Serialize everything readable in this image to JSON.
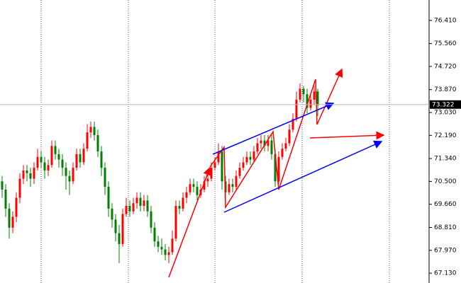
{
  "chart_data": {
    "type": "candlestick",
    "ylim": [
      66.77,
      77.16
    ],
    "yticks": [
      {
        "value": 67.13,
        "label": "67.130"
      },
      {
        "value": 67.97,
        "label": "67.970"
      },
      {
        "value": 68.81,
        "label": "68.810"
      },
      {
        "value": 69.66,
        "label": "69.660"
      },
      {
        "value": 70.5,
        "label": "70.500"
      },
      {
        "value": 71.34,
        "label": "71.340"
      },
      {
        "value": 72.19,
        "label": "72.190"
      },
      {
        "value": 73.03,
        "label": "73.030"
      },
      {
        "value": 73.87,
        "label": "73.870"
      },
      {
        "value": 74.72,
        "label": "74.720"
      },
      {
        "value": 75.56,
        "label": "75.560"
      },
      {
        "value": 76.41,
        "label": "76.410"
      }
    ],
    "current_price": 73.322,
    "up_color": "#ff0000",
    "down_color": "#008000",
    "open": [
      70.5,
      70.2,
      69.5,
      68.8,
      69.2,
      69.9,
      70.6,
      70.9,
      70.8,
      70.6,
      71.0,
      71.4,
      71.2,
      70.9,
      71.1,
      71.8,
      71.5,
      71.3,
      71.0,
      70.7,
      70.5,
      71.0,
      71.5,
      71.2,
      71.7,
      72.3,
      72.5,
      72.2,
      71.6,
      71.0,
      70.3,
      69.5,
      69.1,
      68.6,
      68.2,
      69.3,
      69.6,
      69.4,
      69.7,
      69.9,
      69.6,
      69.8,
      69.4,
      68.8,
      68.3,
      68.1,
      68.0,
      67.8,
      67.9,
      68.4,
      69.6,
      69.5,
      69.9,
      70.1,
      70.4,
      70.3,
      70.0,
      70.2,
      70.5,
      70.6,
      71.0,
      71.2,
      71.6,
      70.5,
      70.1,
      70.4,
      70.3,
      70.7,
      71.0,
      71.2,
      71.4,
      71.3,
      71.6,
      71.9,
      72.0,
      71.8,
      72.0,
      71.5,
      70.5,
      71.4,
      71.7,
      71.9,
      72.4,
      72.8,
      73.5,
      73.9,
      73.7,
      73.2,
      73.5,
      73.8
    ],
    "high": [
      70.7,
      70.4,
      69.7,
      69.4,
      70.1,
      70.8,
      71.1,
      71.1,
      71.0,
      71.2,
      71.7,
      71.6,
      71.4,
      71.3,
      72.0,
      72.0,
      71.7,
      71.5,
      71.2,
      70.9,
      71.2,
      71.7,
      71.7,
      71.9,
      72.6,
      72.7,
      72.7,
      72.4,
      71.8,
      71.2,
      70.5,
      69.7,
      69.3,
      68.9,
      69.5,
      69.9,
      69.8,
      69.9,
      70.1,
      70.1,
      70.0,
      70.0,
      69.6,
      69.0,
      68.5,
      68.4,
      68.2,
      68.1,
      68.7,
      69.8,
      69.8,
      70.1,
      70.3,
      70.6,
      70.6,
      70.5,
      70.4,
      70.7,
      70.8,
      71.2,
      71.4,
      71.9,
      71.8,
      70.7,
      70.6,
      70.6,
      70.9,
      71.2,
      71.4,
      71.6,
      71.6,
      71.8,
      72.1,
      72.2,
      72.2,
      72.2,
      72.2,
      71.7,
      71.6,
      71.9,
      72.1,
      72.6,
      73.0,
      73.8,
      74.1,
      74.0,
      73.9,
      73.7,
      74.0,
      73.9
    ],
    "low": [
      69.9,
      69.2,
      68.4,
      68.6,
      69.0,
      69.7,
      70.4,
      70.5,
      70.3,
      70.4,
      70.9,
      71.0,
      70.6,
      70.7,
      71.0,
      71.3,
      71.0,
      70.7,
      70.2,
      70.0,
      70.4,
      70.9,
      71.0,
      71.1,
      71.6,
      72.1,
      72.0,
      71.4,
      70.7,
      70.0,
      69.2,
      68.8,
      68.3,
      67.5,
      68.1,
      69.2,
      69.2,
      69.3,
      69.5,
      69.4,
      69.4,
      69.2,
      68.6,
      68.1,
      67.9,
      67.8,
      67.6,
      67.5,
      67.8,
      68.3,
      69.3,
      69.4,
      69.7,
      70.0,
      70.1,
      69.8,
      69.9,
      70.1,
      70.3,
      70.5,
      70.9,
      71.1,
      70.2,
      69.9,
      70.0,
      70.1,
      70.2,
      70.6,
      70.9,
      71.1,
      71.1,
      71.2,
      71.5,
      71.7,
      71.6,
      71.6,
      71.3,
      70.3,
      70.4,
      71.3,
      71.6,
      71.8,
      72.3,
      72.7,
      73.4,
      73.4,
      73.0,
      73.1,
      73.3,
      72.9
    ],
    "close": [
      70.2,
      69.5,
      68.8,
      69.2,
      69.9,
      70.6,
      70.9,
      70.8,
      70.6,
      71.0,
      71.4,
      71.2,
      70.9,
      71.1,
      71.8,
      71.5,
      71.3,
      71.0,
      70.7,
      70.5,
      71.0,
      71.5,
      71.2,
      71.7,
      72.3,
      72.5,
      72.2,
      71.6,
      71.0,
      70.3,
      69.5,
      69.1,
      68.6,
      68.2,
      69.3,
      69.6,
      69.4,
      69.7,
      69.9,
      69.6,
      69.8,
      69.4,
      68.8,
      68.3,
      68.1,
      68.0,
      67.8,
      67.9,
      68.4,
      69.6,
      69.5,
      69.9,
      70.1,
      70.4,
      70.3,
      70.0,
      70.2,
      70.5,
      70.6,
      71.0,
      71.2,
      71.6,
      70.5,
      70.1,
      70.4,
      70.3,
      70.7,
      71.0,
      71.2,
      71.4,
      71.3,
      71.6,
      71.9,
      72.0,
      71.8,
      72.0,
      71.5,
      70.5,
      71.4,
      71.7,
      71.9,
      72.4,
      72.8,
      73.5,
      73.9,
      73.7,
      73.2,
      73.5,
      73.8,
      73.3
    ]
  }
}
